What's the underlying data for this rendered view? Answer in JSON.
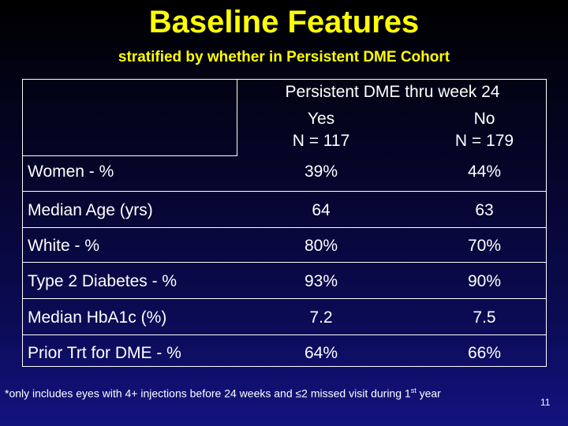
{
  "title": "Baseline Features",
  "subtitle": "stratified by whether in Persistent DME Cohort",
  "table": {
    "header": "Persistent DME thru week 24",
    "col_yes": {
      "label": "Yes",
      "n": "N = 117"
    },
    "col_no": {
      "label": "No",
      "n": "N = 179"
    },
    "rows": [
      {
        "label": "Women - %",
        "yes": "39%",
        "no": "44%"
      },
      {
        "label": "Median Age (yrs)",
        "yes": "64",
        "no": "63"
      },
      {
        "label": "White - %",
        "yes": "80%",
        "no": "70%"
      },
      {
        "label": "Type 2 Diabetes - %",
        "yes": "93%",
        "no": "90%"
      },
      {
        "label": "Median HbA1c (%)",
        "yes": "7.2",
        "no": "7.5"
      },
      {
        "label": "Prior Trt for DME - %",
        "yes": "64%",
        "no": "66%"
      }
    ]
  },
  "footnote": {
    "text_before": "*only includes eyes with 4+ injections before 24 weeks and ≤2 missed visit during 1",
    "superscript": "st",
    "text_after": " year"
  },
  "page_number": "11"
}
